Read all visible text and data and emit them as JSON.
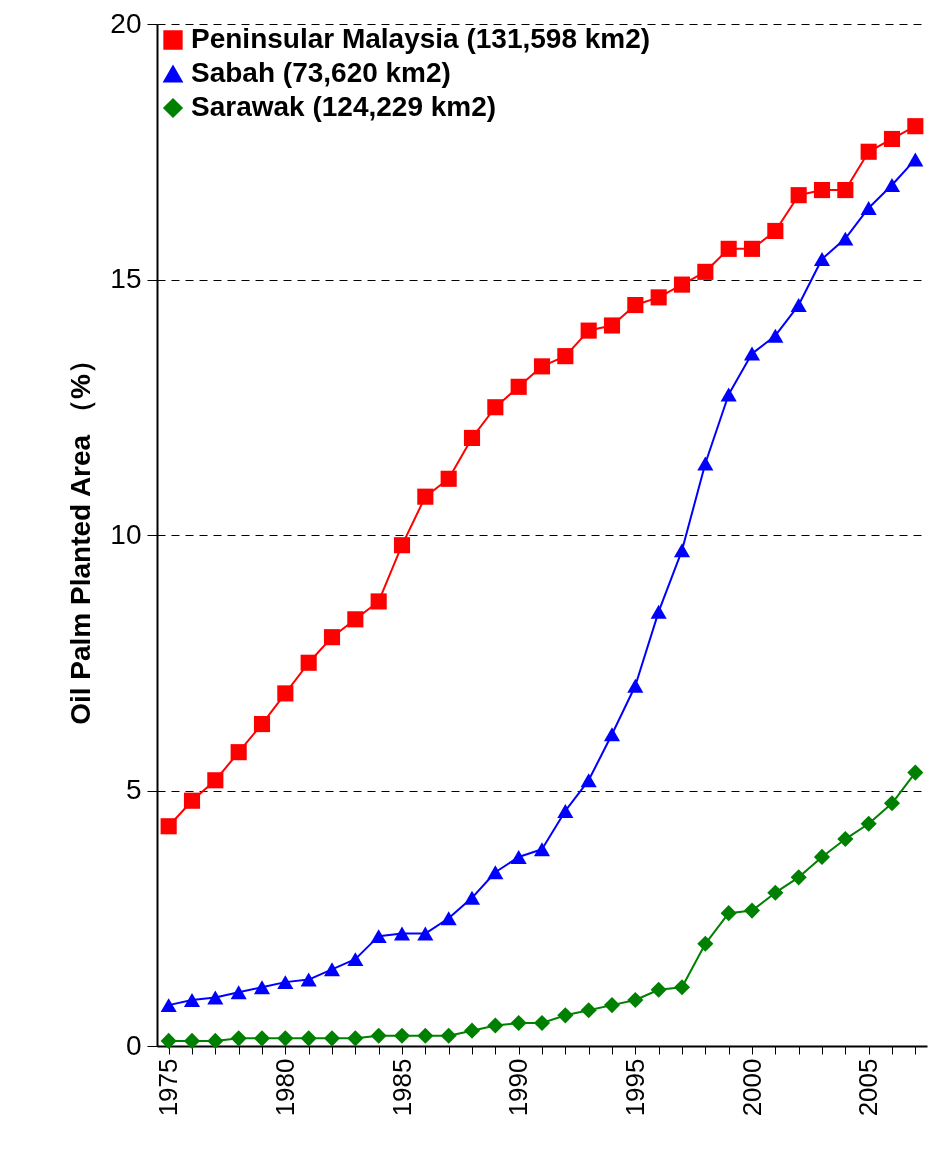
{
  "chart_data": {
    "type": "line",
    "ylabel": "Oil Palm Planted Area （%）",
    "x": [
      1975,
      1976,
      1977,
      1978,
      1979,
      1980,
      1981,
      1982,
      1983,
      1984,
      1985,
      1986,
      1987,
      1988,
      1989,
      1990,
      1991,
      1992,
      1993,
      1994,
      1995,
      1996,
      1997,
      1998,
      1999,
      2000,
      2001,
      2002,
      2003,
      2004,
      2005,
      2006,
      2007
    ],
    "series": [
      {
        "name": "Peninsular Malaysia (131,598 km2)",
        "color": "#ff0000",
        "marker": "square",
        "values": [
          4.3,
          4.8,
          5.2,
          5.75,
          6.3,
          6.9,
          7.5,
          8.0,
          8.35,
          8.7,
          9.8,
          10.75,
          11.1,
          11.9,
          12.5,
          12.9,
          13.3,
          13.5,
          14.0,
          14.1,
          14.5,
          14.65,
          14.9,
          15.15,
          15.6,
          15.6,
          15.95,
          16.65,
          16.75,
          16.75,
          17.5,
          17.75,
          18.0
        ]
      },
      {
        "name": "Sabah (73,620 km2)",
        "color": "#0000ff",
        "marker": "triangle",
        "values": [
          0.8,
          0.9,
          0.95,
          1.05,
          1.15,
          1.25,
          1.3,
          1.5,
          1.7,
          2.15,
          2.2,
          2.2,
          2.5,
          2.9,
          3.4,
          3.7,
          3.85,
          4.6,
          5.2,
          6.1,
          7.05,
          8.5,
          9.7,
          11.4,
          12.75,
          13.55,
          13.9,
          14.5,
          15.4,
          15.8,
          16.4,
          16.85,
          17.35
        ]
      },
      {
        "name": "Sarawak (124,229 km2)",
        "color": "#008000",
        "marker": "diamond",
        "values": [
          0.1,
          0.1,
          0.1,
          0.15,
          0.15,
          0.15,
          0.15,
          0.15,
          0.15,
          0.2,
          0.2,
          0.2,
          0.2,
          0.3,
          0.4,
          0.45,
          0.45,
          0.6,
          0.7,
          0.8,
          0.9,
          1.1,
          1.15,
          2.0,
          2.6,
          2.65,
          3.0,
          3.3,
          3.7,
          4.05,
          4.35,
          4.75,
          5.35
        ]
      }
    ],
    "xlim": [
      1974.5,
      2007.5
    ],
    "xticks": [
      1975,
      {
        "value": 1976,
        "label": null
      },
      {
        "value": 1977,
        "label": null
      },
      {
        "value": 1978,
        "label": null
      },
      {
        "value": 1979,
        "label": null
      },
      1980,
      {
        "value": 1981,
        "label": null
      },
      {
        "value": 1982,
        "label": null
      },
      {
        "value": 1983,
        "label": null
      },
      {
        "value": 1984,
        "label": null
      },
      1985,
      {
        "value": 1986,
        "label": null
      },
      {
        "value": 1987,
        "label": null
      },
      {
        "value": 1988,
        "label": null
      },
      {
        "value": 1989,
        "label": null
      },
      1990,
      {
        "value": 1991,
        "label": null
      },
      {
        "value": 1992,
        "label": null
      },
      {
        "value": 1993,
        "label": null
      },
      {
        "value": 1994,
        "label": null
      },
      1995,
      {
        "value": 1996,
        "label": null
      },
      {
        "value": 1997,
        "label": null
      },
      {
        "value": 1998,
        "label": null
      },
      {
        "value": 1999,
        "label": null
      },
      2000,
      {
        "value": 2001,
        "label": null
      },
      {
        "value": 2002,
        "label": null
      },
      {
        "value": 2003,
        "label": null
      },
      {
        "value": 2004,
        "label": null
      },
      2005,
      {
        "value": 2006,
        "label": null
      },
      {
        "value": 2007,
        "label": null
      }
    ],
    "ylim": [
      0,
      20
    ],
    "yticks": [
      0,
      5,
      10,
      15,
      20
    ],
    "grid": "y",
    "legend": "top left",
    "line_style": "solid"
  }
}
